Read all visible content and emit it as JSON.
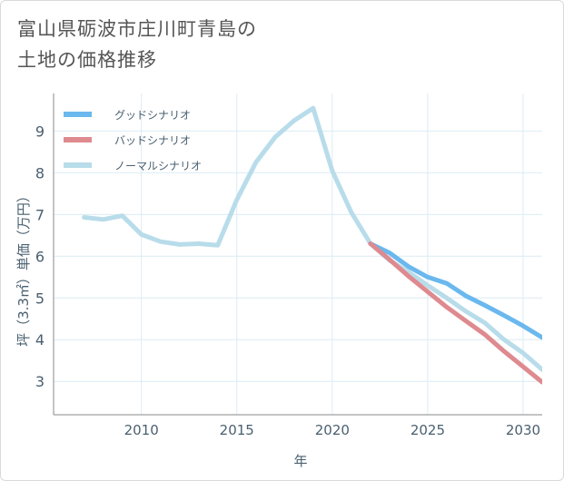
{
  "title_lines": [
    "富山県砺波市庄川町青島の",
    "土地の価格推移"
  ],
  "colors": {
    "good": "#6ab8ee",
    "bad": "#de8a8f",
    "normal": "#b8dcea",
    "grid": "#dcebf4",
    "axis_text": "#4a6070",
    "frame": "#8a8a8a"
  },
  "chart_data": {
    "type": "line",
    "title": "富山県砺波市庄川町青島の土地の価格推移",
    "xlabel": "年",
    "ylabel": "坪（3.3㎡）単価（万円）",
    "xlim": [
      2005.4,
      2031.0
    ],
    "ylim": [
      2.2,
      9.9
    ],
    "xticks": [
      2010,
      2015,
      2020,
      2025,
      2030
    ],
    "yticks": [
      3,
      4,
      5,
      6,
      7,
      8,
      9
    ],
    "legend_position": "top-left",
    "series": [
      {
        "name": "グッドシナリオ",
        "color_key": "good",
        "x": [
          2022,
          2023,
          2024,
          2025,
          2026,
          2027,
          2028,
          2029,
          2030,
          2031
        ],
        "y": [
          6.3,
          6.08,
          5.75,
          5.5,
          5.35,
          5.05,
          4.82,
          4.58,
          4.33,
          4.05
        ]
      },
      {
        "name": "バッドシナリオ",
        "color_key": "bad",
        "x": [
          2022,
          2023,
          2024,
          2025,
          2026,
          2027,
          2028,
          2029,
          2030,
          2031
        ],
        "y": [
          6.3,
          5.92,
          5.52,
          5.15,
          4.78,
          4.45,
          4.12,
          3.72,
          3.35,
          2.98
        ]
      },
      {
        "name": "ノーマルシナリオ",
        "color_key": "normal",
        "x": [
          2007,
          2008,
          2009,
          2010,
          2011,
          2012,
          2013,
          2014,
          2015,
          2016,
          2017,
          2018,
          2019,
          2020,
          2021,
          2022,
          2023,
          2024,
          2025,
          2026,
          2027,
          2028,
          2029,
          2030,
          2031
        ],
        "y": [
          6.93,
          6.88,
          6.97,
          6.52,
          6.35,
          6.28,
          6.3,
          6.26,
          7.35,
          8.25,
          8.85,
          9.25,
          9.55,
          8.05,
          7.05,
          6.3,
          5.9,
          5.62,
          5.3,
          5.0,
          4.68,
          4.4,
          4.0,
          3.68,
          3.28
        ]
      }
    ]
  }
}
